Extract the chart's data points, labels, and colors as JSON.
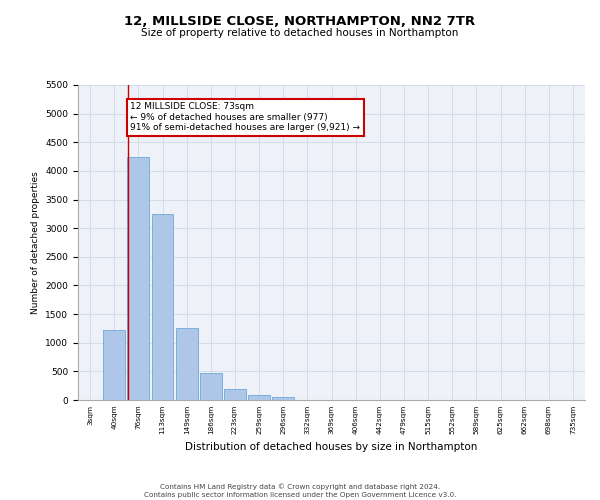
{
  "title_line1": "12, MILLSIDE CLOSE, NORTHAMPTON, NN2 7TR",
  "title_line2": "Size of property relative to detached houses in Northampton",
  "xlabel": "Distribution of detached houses by size in Northampton",
  "ylabel": "Number of detached properties",
  "categories": [
    "3sqm",
    "40sqm",
    "76sqm",
    "113sqm",
    "149sqm",
    "186sqm",
    "223sqm",
    "259sqm",
    "296sqm",
    "332sqm",
    "369sqm",
    "406sqm",
    "442sqm",
    "479sqm",
    "515sqm",
    "552sqm",
    "589sqm",
    "625sqm",
    "662sqm",
    "698sqm",
    "735sqm"
  ],
  "values": [
    0,
    1220,
    4250,
    3250,
    1250,
    470,
    200,
    90,
    50,
    0,
    0,
    0,
    0,
    0,
    0,
    0,
    0,
    0,
    0,
    0,
    0
  ],
  "bar_color": "#aec6e8",
  "bar_edge_color": "#5a9fd4",
  "annotation_text": "12 MILLSIDE CLOSE: 73sqm\n← 9% of detached houses are smaller (977)\n91% of semi-detached houses are larger (9,921) →",
  "annotation_box_color": "#ffffff",
  "annotation_box_edge_color": "#cc0000",
  "vline_x": 1.57,
  "vline_color": "#cc0000",
  "grid_color": "#ccd9e8",
  "background_color": "#eef2f8",
  "ylim": [
    0,
    5500
  ],
  "yticks": [
    0,
    500,
    1000,
    1500,
    2000,
    2500,
    3000,
    3500,
    4000,
    4500,
    5000,
    5500
  ],
  "footer_line1": "Contains HM Land Registry data © Crown copyright and database right 2024.",
  "footer_line2": "Contains public sector information licensed under the Open Government Licence v3.0."
}
